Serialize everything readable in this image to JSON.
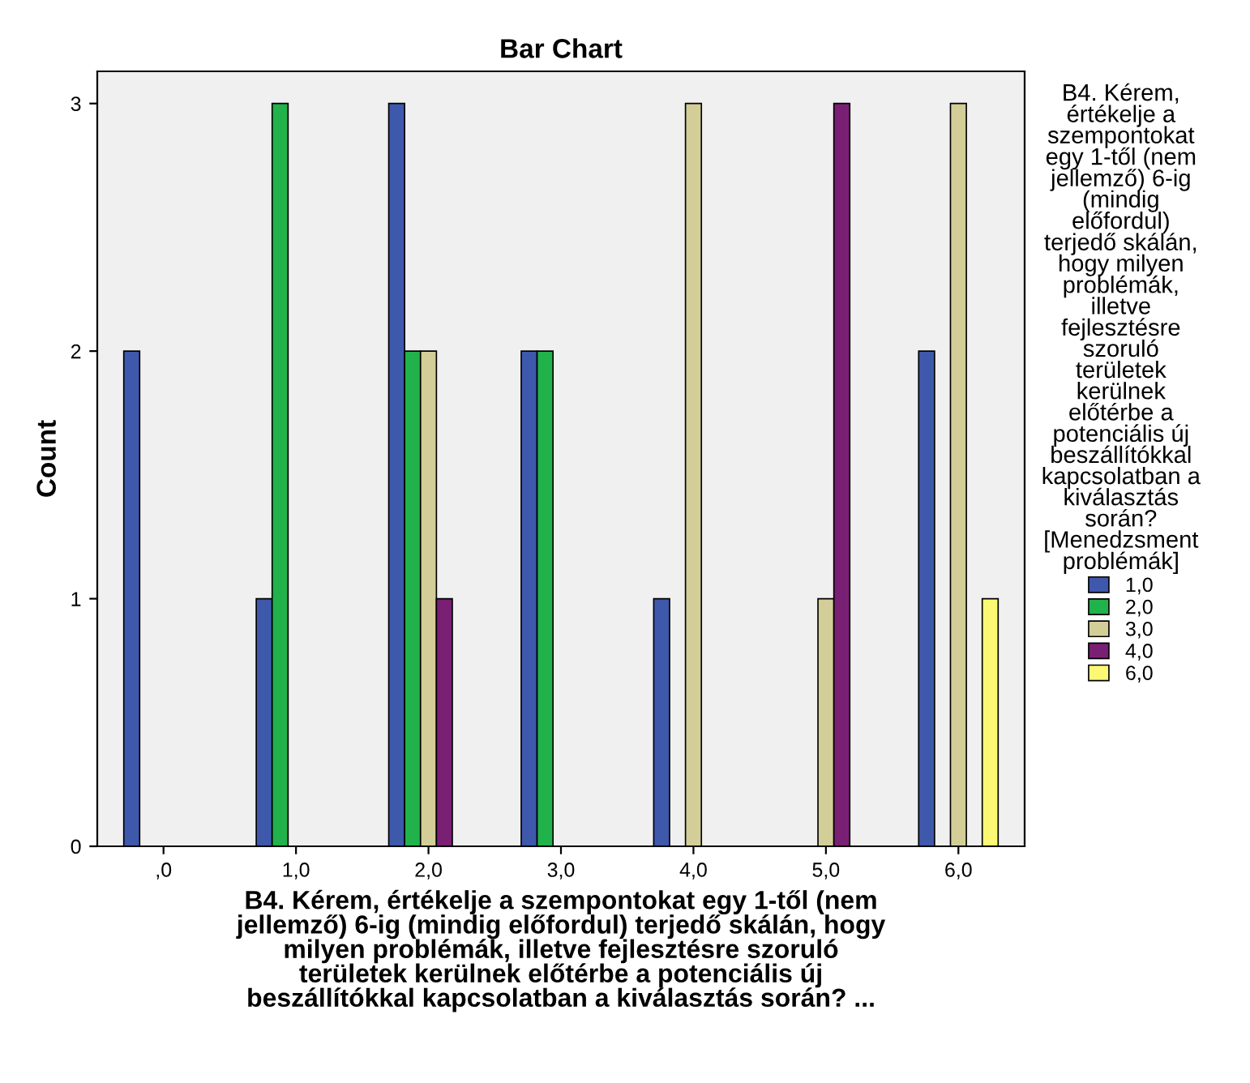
{
  "chart_data": {
    "type": "bar",
    "title": "Bar Chart",
    "xlabel": "B4. Kérem, értékelje a szempontokat egy 1-től (nem\njellemző) 6-ig (mindig előfordul) terjedő skálán, hogy\nmilyen problémák, illetve fejlesztésre szoruló\nterületek kerülnek előtérbe a potenciális új\nbeszállítókkal kapcsolatban a kiválasztás során? ...",
    "ylabel": "Count",
    "legend_title": "B4. Kérem,\nértékelje a\nszempontokat\negy 1-től (nem\njellemző) 6-ig\n(mindig\nelőfordul)\nterjedő skálán,\nhogy milyen\nproblémák,\nilletve\nfejlesztésre\nszoruló\nterületek\nkerülnek\nelőtérbe a\npotenciális új\nbeszállítókkal\nkapcsolatban a\nkiválasztás\nsorán?\n[Menedzsment\nproblémák]",
    "categories": [
      ",0",
      "1,0",
      "2,0",
      "3,0",
      "4,0",
      "5,0",
      "6,0"
    ],
    "series": [
      {
        "name": "1,0",
        "color": "#3e58ac",
        "values": [
          2,
          1,
          3,
          2,
          1,
          null,
          2
        ]
      },
      {
        "name": "2,0",
        "color": "#21b24b",
        "values": [
          null,
          3,
          2,
          2,
          null,
          null,
          null
        ]
      },
      {
        "name": "3,0",
        "color": "#d3ce97",
        "values": [
          null,
          null,
          2,
          null,
          3,
          1,
          3
        ]
      },
      {
        "name": "4,0",
        "color": "#7a2074",
        "values": [
          null,
          null,
          1,
          null,
          null,
          3,
          null
        ]
      },
      {
        "name": "6,0",
        "color": "#fbf873",
        "values": [
          null,
          null,
          null,
          null,
          null,
          null,
          1
        ]
      }
    ],
    "ylim": [
      0,
      3.13
    ],
    "yticks": [
      0,
      1,
      2,
      3
    ],
    "grid": false,
    "legend": "right"
  }
}
